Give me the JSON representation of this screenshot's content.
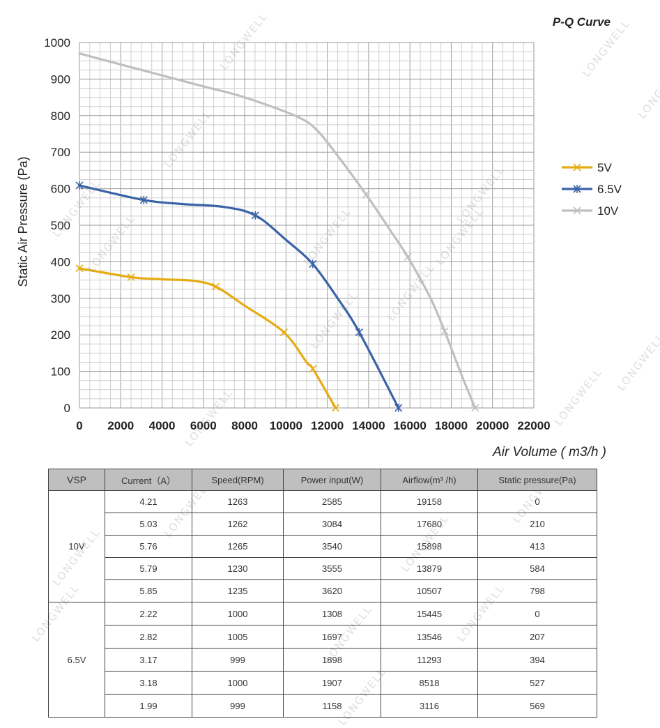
{
  "chart_data": {
    "type": "line",
    "title": "P-Q Curve",
    "xlabel": "Air Volume ( m3/h )",
    "ylabel": "Static Air Pressure  (Pa)",
    "xlim": [
      0,
      22000
    ],
    "ylim": [
      0,
      1000
    ],
    "x_ticks": [
      "0",
      "2000",
      "4000",
      "6000",
      "8000",
      "10000",
      "12000",
      "14000",
      "16000",
      "18000",
      "20000",
      "22000"
    ],
    "y_ticks": [
      "0",
      "100",
      "200",
      "300",
      "400",
      "500",
      "600",
      "700",
      "800",
      "900",
      "1000"
    ],
    "grid": true,
    "legend_position": "right",
    "series": [
      {
        "name": "5V",
        "color": "#e6ac14",
        "marker": "x",
        "points": [
          [
            0,
            382
          ],
          [
            2500,
            358
          ],
          [
            4000,
            352
          ],
          [
            5500,
            348
          ],
          [
            6600,
            332
          ],
          [
            8000,
            280
          ],
          [
            9900,
            207
          ],
          [
            11000,
            125
          ],
          [
            11300,
            107
          ],
          [
            12400,
            0
          ]
        ],
        "markers": [
          [
            0,
            382
          ],
          [
            2500,
            358
          ],
          [
            6600,
            332
          ],
          [
            9900,
            207
          ],
          [
            11300,
            107
          ],
          [
            12400,
            0
          ]
        ]
      },
      {
        "name": "6.5V",
        "color": "#3a63a8",
        "marker": "asterisk",
        "points": [
          [
            0,
            609
          ],
          [
            3116,
            569
          ],
          [
            5000,
            558
          ],
          [
            7000,
            550
          ],
          [
            8518,
            527
          ],
          [
            10000,
            460
          ],
          [
            11293,
            394
          ],
          [
            12500,
            300
          ],
          [
            13546,
            207
          ],
          [
            15445,
            0
          ]
        ],
        "markers": [
          [
            0,
            609
          ],
          [
            3116,
            569
          ],
          [
            8518,
            527
          ],
          [
            11293,
            394
          ],
          [
            13546,
            207
          ],
          [
            15445,
            0
          ]
        ]
      },
      {
        "name": "10V",
        "color": "#bfbfbf",
        "marker": "x",
        "points": [
          [
            0,
            970
          ],
          [
            3000,
            925
          ],
          [
            6000,
            880
          ],
          [
            8000,
            850
          ],
          [
            10507,
            798
          ],
          [
            11500,
            760
          ],
          [
            12500,
            690
          ],
          [
            13879,
            584
          ],
          [
            15000,
            490
          ],
          [
            15898,
            413
          ],
          [
            17000,
            300
          ],
          [
            17680,
            210
          ],
          [
            18500,
            90
          ],
          [
            19158,
            0
          ]
        ],
        "markers": [
          [
            13879,
            584
          ],
          [
            15898,
            413
          ],
          [
            17680,
            210
          ],
          [
            19158,
            0
          ]
        ]
      }
    ]
  },
  "watermark_text": "LONGWELL",
  "table": {
    "headers": [
      "VSP",
      "Current（A）",
      "Speed(RPM)",
      "Power input(W)",
      "Airflow(m³ /h)",
      "Static pressure(Pa)"
    ],
    "groups": [
      {
        "vsp": "10V",
        "rows": [
          [
            "4.21",
            "1263",
            "2585",
            "19158",
            "0"
          ],
          [
            "5.03",
            "1262",
            "3084",
            "17680",
            "210"
          ],
          [
            "5.76",
            "1265",
            "3540",
            "15898",
            "413"
          ],
          [
            "5.79",
            "1230",
            "3555",
            "13879",
            "584"
          ],
          [
            "5.85",
            "1235",
            "3620",
            "10507",
            "798"
          ]
        ]
      },
      {
        "vsp": "6.5V",
        "rows": [
          [
            "2.22",
            "1000",
            "1308",
            "15445",
            "0"
          ],
          [
            "2.82",
            "1005",
            "1697",
            "13546",
            "207"
          ],
          [
            "3.17",
            "999",
            "1898",
            "11293",
            "394"
          ],
          [
            "3.18",
            "1000",
            "1907",
            "8518",
            "527"
          ],
          [
            "1.99",
            "999",
            "1158",
            "3116",
            "569"
          ]
        ]
      }
    ]
  }
}
